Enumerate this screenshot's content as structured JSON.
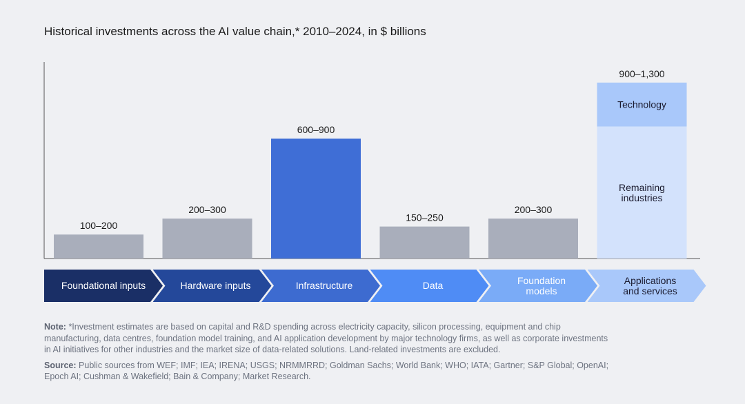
{
  "title": "Historical investments across the AI value chain,* 2010–2024, in $ billions",
  "chart_data": {
    "type": "bar",
    "title": "Historical investments across the AI value chain,* 2010–2024, in $ billions",
    "categories": [
      "Foundational inputs",
      "Hardware inputs",
      "Infrastructure",
      "Data",
      "Foundation models",
      "Applications and services"
    ],
    "ranges": [
      [
        100,
        200
      ],
      [
        200,
        300
      ],
      [
        600,
        900
      ],
      [
        150,
        250
      ],
      [
        200,
        300
      ],
      [
        900,
        1300
      ]
    ],
    "labels": [
      "100–200",
      "200–300",
      "600–900",
      "150–250",
      "200–300",
      "900–1,300"
    ],
    "colors": [
      "#a9aebb",
      "#a9aebb",
      "#3f6ed6",
      "#a9aebb",
      "#a9aebb",
      "#d3e2fc"
    ],
    "stack": {
      "category_index": 5,
      "segments": [
        {
          "name": "Technology",
          "share": 0.25,
          "color": "#a9c8fa"
        },
        {
          "name": "Remaining industries",
          "share": 0.75,
          "color": "#d3e2fc"
        }
      ]
    },
    "chevron_colors": [
      "#1a2f66",
      "#24489a",
      "#3d6bd0",
      "#4f8cf5",
      "#7aabf7",
      "#a9c8fa"
    ],
    "chevron_text_colors": [
      "#fff",
      "#fff",
      "#fff",
      "#fff",
      "#fff",
      "#1a1a2e"
    ],
    "chevron_labels": [
      "Foundational inputs",
      "Hardware inputs",
      "Infrastructure",
      "Data",
      "Foundation\nmodels",
      "Applications\nand services"
    ]
  },
  "note_label": "Note:",
  "note": "*Investment estimates are based on capital and R&D spending across electricity capacity, silicon processing, equipment and chip manufacturing, data centres, foundation model training, and AI application development by major technology firms, as well as corporate investments in AI initiatives for other industries and the market size of data-related solutions. Land-related investments are excluded.",
  "source_label": "Source:",
  "source": "Public sources from WEF; IMF; IEA; IRENA; USGS; NRMMRRD; Goldman Sachs; World Bank; WHO; IATA; Gartner; S&P Global; OpenAI; Epoch AI; Cushman & Wakefield; Bain & Company; Market Research."
}
